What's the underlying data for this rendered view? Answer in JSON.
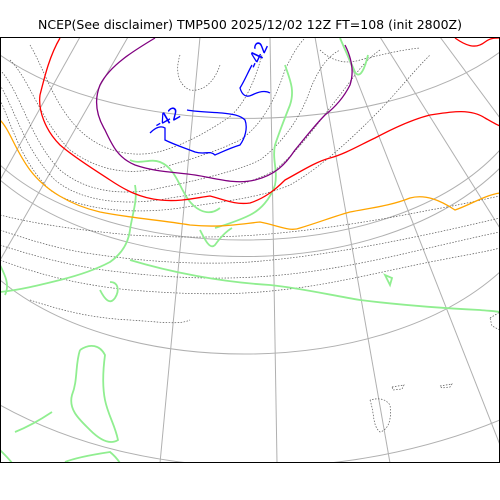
{
  "title": "NCEP(See disclaimer) TMP500 2025/12/02 12Z FT=108 (init 2800Z)",
  "contour_labels": [
    "-42",
    "-42"
  ],
  "colors": {
    "graticule": "#b0b0b0",
    "coastline": "#90ee90",
    "isotherm_minus42": "#0000ff",
    "isotherm_purple": "#800080",
    "isotherm_red": "#ff0000",
    "isotherm_orange": "#ffa500",
    "isotherm_green": "#90ee90",
    "dotted_contours": "#555555",
    "frame": "#000000"
  },
  "map": {
    "type": "polar-stereographic temperature chart",
    "variable": "TMP500"
  }
}
